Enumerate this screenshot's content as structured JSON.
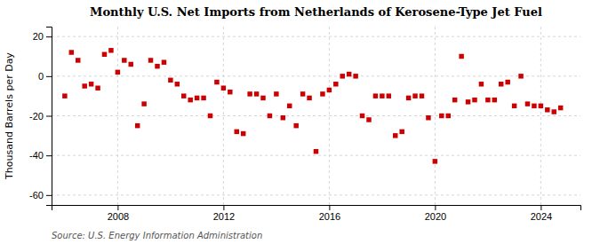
{
  "chart_data": {
    "type": "scatter",
    "title": "Monthly U.S. Net Imports from Netherlands of Kerosene-Type Jet Fuel",
    "ylabel": "Thousand Barrels per Day",
    "annotations": [
      "Source: U.S. Energy Information Administration"
    ],
    "x": [
      2006,
      2006.25,
      2006.5,
      2006.75,
      2007,
      2007.25,
      2007.5,
      2007.75,
      2008,
      2008.25,
      2008.5,
      2008.75,
      2009,
      2009.25,
      2009.5,
      2009.75,
      2010,
      2010.25,
      2010.5,
      2010.75,
      2011,
      2011.25,
      2011.5,
      2011.75,
      2012,
      2012.25,
      2012.5,
      2012.75,
      2013,
      2013.25,
      2013.5,
      2013.75,
      2014,
      2014.25,
      2014.5,
      2014.75,
      2015,
      2015.25,
      2015.5,
      2015.75,
      2016,
      2016.25,
      2016.5,
      2016.75,
      2017,
      2017.25,
      2017.5,
      2017.75,
      2018,
      2018.25,
      2018.5,
      2018.75,
      2019,
      2019.25,
      2019.5,
      2019.75,
      2020,
      2020.25,
      2020.5,
      2020.75,
      2021,
      2021.25,
      2021.5,
      2021.75,
      2022,
      2022.25,
      2022.5,
      2022.75,
      2023,
      2023.25,
      2023.5,
      2023.75,
      2024,
      2024.25,
      2024.5,
      2024.75
    ],
    "values": [
      -10,
      12,
      8,
      -5,
      -4,
      -6,
      11,
      13,
      2,
      8,
      6,
      -25,
      -14,
      8,
      5,
      7,
      -2,
      -4,
      -10,
      -12,
      -11,
      -11,
      -20,
      -3,
      -6,
      -8,
      -28,
      -29,
      -9,
      -9,
      -11,
      -20,
      -9,
      -21,
      -15,
      -25,
      -9,
      -11,
      -38,
      -9,
      -7,
      -4,
      0,
      1,
      0,
      -20,
      -22,
      -10,
      -10,
      -10,
      -30,
      -28,
      -11,
      -10,
      -10,
      -21,
      -43,
      -20,
      -20,
      -12,
      10,
      -13,
      -12,
      -4,
      -12,
      -12,
      -4,
      -3,
      -15,
      0,
      -14,
      -15,
      -15,
      -17,
      -18,
      -16
    ],
    "color": "#cc0000",
    "marker": "square",
    "xlim": [
      2005.5,
      2025.5
    ],
    "xticks": [
      2008,
      2012,
      2016,
      2020,
      2024
    ],
    "ylim": [
      -65,
      25
    ],
    "yticks": [
      -60,
      -40,
      -20,
      0,
      20
    ],
    "grid": true
  }
}
